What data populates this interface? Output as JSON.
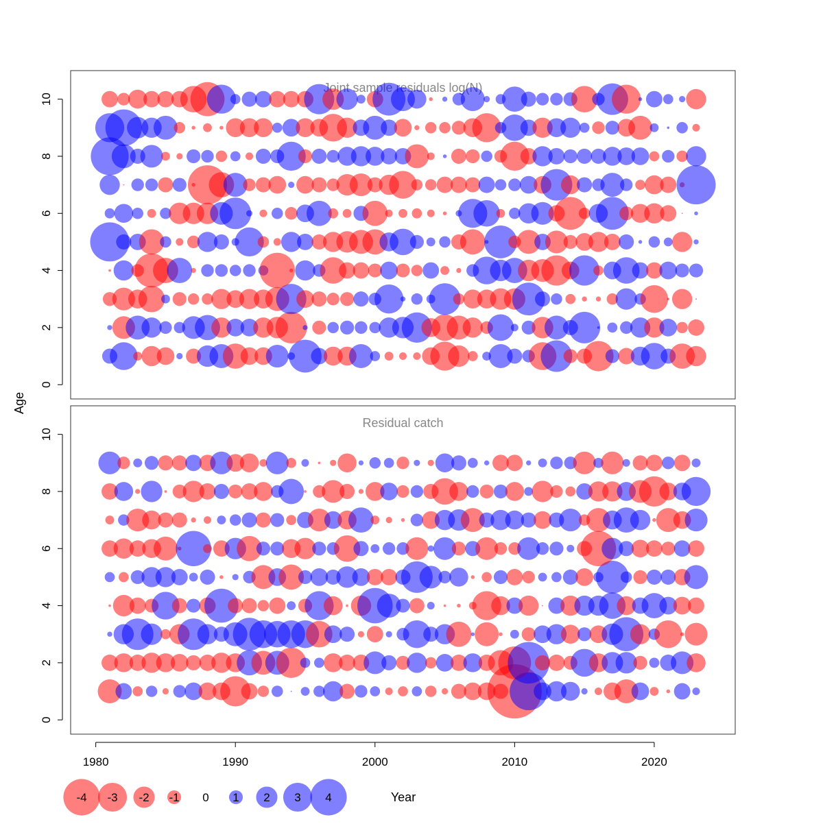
{
  "xlabel": "Year",
  "ylabel": "Age",
  "colors": {
    "negative": "#ff0000",
    "positive": "#0000ff",
    "frame": "#333333",
    "title": "#888888"
  },
  "x_ticks": [
    1980,
    1990,
    2000,
    2010,
    2020
  ],
  "legend": {
    "items": [
      {
        "label": "-4",
        "value": -4
      },
      {
        "label": "-3",
        "value": -3
      },
      {
        "label": "-2",
        "value": -2
      },
      {
        "label": "-1",
        "value": -1
      },
      {
        "label": "0",
        "value": 0
      },
      {
        "label": "1",
        "value": 1
      },
      {
        "label": "2",
        "value": 2
      },
      {
        "label": "3",
        "value": 3
      },
      {
        "label": "4",
        "value": 4
      }
    ]
  },
  "chart_data": [
    {
      "type": "scatter",
      "subtype": "bubble",
      "title": "Joint sample residuals log(N)",
      "xlabel": "",
      "ylabel": "Age",
      "xlim": [
        1978.2,
        2025.8
      ],
      "ylim": [
        -0.5,
        11.0
      ],
      "y_ticks": [
        0,
        2,
        4,
        6,
        8,
        10
      ],
      "years": [
        1981,
        1982,
        1983,
        1984,
        1985,
        1986,
        1987,
        1988,
        1989,
        1990,
        1991,
        1992,
        1993,
        1994,
        1995,
        1996,
        1997,
        1998,
        1999,
        2000,
        2001,
        2002,
        2003,
        2004,
        2005,
        2006,
        2007,
        2008,
        2009,
        2010,
        2011,
        2012,
        2013,
        2014,
        2015,
        2016,
        2017,
        2018,
        2019,
        2020,
        2021,
        2022,
        2023
      ],
      "ages": [
        1,
        2,
        3,
        4,
        5,
        6,
        7,
        8,
        9,
        10
      ],
      "residuals": {
        "10": [
          -1.3,
          -1.0,
          -1.5,
          -1.3,
          -1.3,
          -1.3,
          -2.1,
          -2.7,
          2.3,
          0.8,
          1.2,
          1.3,
          -1.3,
          -1.3,
          -1.3,
          2.4,
          -1.7,
          1.7,
          0.7,
          -1.3,
          2.6,
          1.9,
          1.5,
          -0.3,
          0.4,
          1.0,
          1.9,
          0.5,
          0.8,
          2.0,
          1.2,
          1.0,
          1.0,
          1.1,
          -2.1,
          1.0,
          2.5,
          -2.3,
          0.3,
          1.3,
          0.8,
          0.5,
          -1.6
        ],
        "9": [
          2.3,
          2.9,
          1.7,
          1.6,
          1.9,
          -0.9,
          -0.3,
          -0.7,
          -0.3,
          -1.5,
          -1.5,
          -1.5,
          0.8,
          1.4,
          -1.5,
          -1.4,
          -2.2,
          -1.6,
          1.3,
          1.9,
          1.3,
          -1.4,
          -0.4,
          -0.9,
          -0.9,
          -1.1,
          -1.5,
          -2.3,
          0.9,
          2.1,
          1.3,
          -1.6,
          1.5,
          1.6,
          0.8,
          -1.0,
          1.1,
          -1.4,
          -1.9,
          0.7,
          0.2,
          0.9,
          -0.6
        ],
        "8": [
          3.0,
          1.9,
          1.2,
          1.8,
          -0.7,
          -0.5,
          1.1,
          1.0,
          -0.9,
          0.8,
          -0.6,
          1.2,
          1.1,
          2.3,
          -1.1,
          1.2,
          1.0,
          1.5,
          1.6,
          1.5,
          1.3,
          1.3,
          -1.9,
          -0.6,
          0.3,
          -1.2,
          -1.1,
          0.9,
          -1.0,
          -2.3,
          -1.3,
          1.6,
          1.3,
          1.1,
          1.2,
          1.2,
          1.5,
          1.4,
          1.4,
          -0.8,
          1.0,
          -0.9,
          1.6
        ],
        "7": [
          1.6,
          -0.1,
          1.0,
          1.0,
          -1.2,
          1.1,
          -0.3,
          -3.1,
          -2.0,
          1.9,
          -1.0,
          -1.2,
          -1.4,
          0.5,
          -1.4,
          -1.2,
          -1.0,
          -1.7,
          -1.8,
          -1.2,
          -1.6,
          -2.2,
          -0.9,
          -0.9,
          -1.3,
          -1.3,
          -1.2,
          1.3,
          0.9,
          1.0,
          1.4,
          -1.4,
          2.5,
          -1.5,
          1.2,
          1.0,
          1.9,
          1.0,
          -0.8,
          -1.5,
          -1.3,
          -0.4,
          3.1
        ],
        "6": [
          0.8,
          1.5,
          0.9,
          -0.7,
          0.9,
          -1.7,
          -1.7,
          -1.7,
          1.8,
          2.5,
          0.5,
          -0.6,
          0.9,
          -1.0,
          1.4,
          2.0,
          -0.8,
          -0.7,
          1.2,
          -2.0,
          -0.6,
          -0.7,
          -0.8,
          -0.6,
          -0.3,
          0.5,
          2.3,
          2.1,
          -0.7,
          0.9,
          1.6,
          1.8,
          -1.3,
          -2.6,
          -0.9,
          1.5,
          2.6,
          -1.1,
          -1.5,
          -1.6,
          -1.3,
          -0.1,
          0.3
        ],
        "5": [
          3.1,
          1.2,
          1.3,
          -2.0,
          0.9,
          -0.6,
          -1.0,
          1.6,
          1.2,
          0.6,
          2.3,
          -0.9,
          -0.6,
          1.6,
          1.3,
          -1.2,
          -1.6,
          -1.7,
          -1.9,
          -2.0,
          1.5,
          2.1,
          1.1,
          0.7,
          0.9,
          -1.2,
          -2.0,
          0.3,
          2.6,
          -1.0,
          -1.9,
          1.3,
          -1.8,
          -1.1,
          -1.4,
          -1.6,
          -1.3,
          1.2,
          0.3,
          0.9,
          0.7,
          -1.6,
          0.4
        ],
        "4": [
          -0.2,
          1.6,
          -1.0,
          -2.7,
          -2.0,
          2.0,
          -0.4,
          1.0,
          1.0,
          0.9,
          1.0,
          0.8,
          -2.8,
          -0.3,
          1.6,
          1.0,
          -2.1,
          -1.3,
          -1.3,
          -1.1,
          1.4,
          -1.1,
          -0.9,
          1.3,
          -0.7,
          -0.4,
          1.0,
          2.2,
          1.7,
          2.0,
          -1.7,
          -1.8,
          -2.4,
          -1.4,
          2.4,
          -0.8,
          1.4,
          2.1,
          1.3,
          -1.3,
          1.4,
          1.1,
          1.1
        ],
        "3": [
          -1.1,
          -1.8,
          -1.5,
          -2.1,
          0.7,
          -1.1,
          -0.9,
          -0.9,
          -1.6,
          -1.4,
          -1.6,
          -1.5,
          -1.9,
          2.4,
          -1.4,
          -1.2,
          -1.0,
          -1.1,
          1.2,
          1.0,
          2.3,
          0.4,
          0.9,
          0.7,
          2.5,
          -0.9,
          -1.5,
          -1.5,
          -1.7,
          -1.7,
          2.6,
          1.2,
          0.9,
          -0.8,
          -0.4,
          -0.4,
          -0.9,
          1.7,
          0.9,
          -2.2,
          -0.2,
          -1.6,
          0.1
        ],
        "2": [
          0.4,
          -1.8,
          1.9,
          1.6,
          1.0,
          0.9,
          1.8,
          2.0,
          -1.6,
          1.4,
          1.4,
          -1.6,
          -1.7,
          -2.5,
          0.4,
          -1.1,
          0.9,
          1.1,
          1.0,
          0.9,
          1.6,
          1.7,
          2.4,
          -1.5,
          -2.1,
          -1.9,
          -1.6,
          -1.0,
          2.1,
          0.6,
          1.1,
          -1.7,
          1.9,
          1.2,
          2.5,
          0.2,
          0.8,
          1.0,
          1.6,
          -1.6,
          1.4,
          -0.9,
          -1.3
        ],
        "1": [
          1.2,
          2.2,
          -0.7,
          -1.6,
          -1.4,
          0.5,
          -1.2,
          1.7,
          1.9,
          -2.0,
          -1.4,
          -1.4,
          1.8,
          0.6,
          2.6,
          1.3,
          -1.5,
          -1.5,
          1.9,
          0.8,
          -0.7,
          -0.6,
          -0.6,
          -1.4,
          -2.3,
          -1.7,
          -0.8,
          0.7,
          1.9,
          1.2,
          1.0,
          -2.2,
          2.5,
          -1.1,
          -1.2,
          -2.4,
          1.1,
          -1.3,
          1.5,
          2.1,
          1.2,
          -2.0,
          -1.6
        ]
      }
    },
    {
      "type": "scatter",
      "subtype": "bubble",
      "title": "Residual catch",
      "xlabel": "Year",
      "ylabel": "Age",
      "xlim": [
        1978.2,
        2025.8
      ],
      "ylim": [
        -0.5,
        11.0
      ],
      "y_ticks": [
        0,
        2,
        4,
        6,
        8,
        10
      ],
      "years": [
        1981,
        1982,
        1983,
        1984,
        1985,
        1986,
        1987,
        1988,
        1989,
        1990,
        1991,
        1992,
        1993,
        1994,
        1995,
        1996,
        1997,
        1998,
        1999,
        2000,
        2001,
        2002,
        2003,
        2004,
        2005,
        2006,
        2007,
        2008,
        2009,
        2010,
        2011,
        2012,
        2013,
        2014,
        2015,
        2016,
        2017,
        2018,
        2019,
        2020,
        2021,
        2022,
        2023
      ],
      "ages": [
        1,
        2,
        3,
        4,
        5,
        6,
        7,
        8,
        9
      ],
      "residuals": {
        "9": [
          1.8,
          -1.0,
          0.7,
          1.1,
          -1.2,
          -1.2,
          1.3,
          -1.3,
          1.8,
          -1.4,
          -1.5,
          -0.6,
          1.8,
          -0.8,
          0.6,
          -0.2,
          -0.5,
          -1.5,
          0.4,
          0.9,
          0.8,
          -1.0,
          0.5,
          -0.5,
          1.5,
          1.2,
          0.8,
          0.4,
          -1.3,
          -1.3,
          0.4,
          0.7,
          1.0,
          1.0,
          -1.8,
          0.8,
          -1.8,
          0.6,
          -1.2,
          -1.3,
          1.0,
          -1.3,
          0.7
        ],
        "8": [
          -1.3,
          1.5,
          -0.4,
          1.7,
          -0.2,
          -1.1,
          -1.7,
          -1.3,
          1.2,
          -1.1,
          -1.3,
          -1.5,
          1.0,
          2.0,
          -0.2,
          -1.0,
          -1.8,
          -1.2,
          -0.4,
          -1.5,
          1.4,
          -1.0,
          1.0,
          -1.2,
          -2.1,
          -1.5,
          1.0,
          -1.1,
          1.1,
          -1.5,
          0.7,
          -1.7,
          -1.0,
          -0.8,
          1.3,
          -1.6,
          -1.6,
          1.5,
          -1.8,
          -2.4,
          -1.4,
          1.4,
          2.3
        ],
        "7": [
          -0.7,
          0.9,
          -1.8,
          -1.5,
          -1.2,
          -1.2,
          -0.4,
          -0.6,
          0.7,
          0.9,
          1.2,
          -1.2,
          1.1,
          -0.8,
          1.3,
          -1.8,
          1.4,
          -1.5,
          2.0,
          -0.7,
          -0.5,
          -0.3,
          1.0,
          -1.4,
          1.6,
          1.7,
          -1.9,
          1.2,
          1.6,
          1.5,
          1.2,
          -1.4,
          1.2,
          1.8,
          -0.9,
          -1.9,
          1.5,
          2.0,
          1.6,
          -0.3,
          -1.9,
          -1.4,
          1.8
        ],
        "6": [
          -1.3,
          -1.6,
          -1.3,
          -1.5,
          -1.9,
          -0.3,
          2.8,
          -0.7,
          -1.3,
          1.7,
          -2.0,
          1.1,
          1.1,
          -1.5,
          -1.7,
          1.1,
          1.0,
          -2.1,
          1.2,
          0.7,
          1.0,
          1.0,
          -1.8,
          0.5,
          1.8,
          -1.1,
          1.2,
          -1.8,
          -1.0,
          -1.0,
          1.8,
          1.0,
          1.1,
          0.6,
          -1.2,
          -2.8,
          1.7,
          1.2,
          -1.4,
          -1.3,
          -1.1,
          1.3,
          -1.3
        ],
        "5": [
          0.8,
          -0.8,
          1.1,
          1.6,
          1.6,
          1.3,
          0.7,
          1.2,
          -0.3,
          0.5,
          1.0,
          -1.9,
          1.4,
          -2.0,
          1.1,
          1.4,
          1.2,
          1.7,
          1.4,
          -1.3,
          -1.3,
          1.2,
          2.5,
          1.8,
          1.0,
          1.5,
          -0.3,
          -0.8,
          1.1,
          -1.3,
          -1.0,
          0.7,
          0.8,
          1.2,
          -1.4,
          0.8,
          2.6,
          0.9,
          -1.1,
          1.2,
          1.2,
          -1.3,
          1.9
        ],
        "4": [
          -0.2,
          -1.7,
          -1.3,
          -1.1,
          2.2,
          -1.2,
          1.1,
          -1.3,
          2.7,
          -1.2,
          -1.2,
          -0.9,
          -1.3,
          0.7,
          -1.1,
          2.3,
          -1.5,
          -0.2,
          -1.6,
          2.8,
          1.9,
          1.1,
          -1.2,
          0.6,
          -0.2,
          -0.3,
          -0.6,
          -2.3,
          -1.5,
          1.3,
          -1.6,
          -0.1,
          1.3,
          -1.6,
          1.6,
          1.6,
          2.1,
          -1.5,
          1.3,
          2.0,
          1.4,
          -1.4,
          -1.3
        ],
        "3": [
          0.4,
          1.6,
          2.5,
          1.7,
          -0.8,
          -1.6,
          2.5,
          1.6,
          1.2,
          1.9,
          2.6,
          2.2,
          2.1,
          2.2,
          2.2,
          -2.1,
          1.4,
          1.2,
          -0.5,
          -1.3,
          0.5,
          1.0,
          2.2,
          1.2,
          1.6,
          -2.0,
          0.3,
          -1.9,
          -0.3,
          0.7,
          -1.1,
          1.4,
          1.6,
          -1.5,
          1.1,
          -1.4,
          1.7,
          2.7,
          -1.6,
          0.9,
          -2.2,
          -0.3,
          -1.8
        ],
        "2": [
          -1.3,
          -1.5,
          -1.3,
          -1.6,
          -1.5,
          -1.4,
          -1.2,
          -1.3,
          -1.6,
          -1.5,
          2.0,
          -1.9,
          1.9,
          -2.4,
          0.8,
          0.8,
          -1.5,
          -1.3,
          -1.3,
          1.8,
          1.2,
          -1.1,
          1.6,
          -0.9,
          1.4,
          -1.3,
          1.5,
          -1.3,
          -2.0,
          -2.6,
          3.3,
          -1.2,
          -1.3,
          -1.1,
          2.2,
          -1.5,
          1.7,
          1.7,
          -1.1,
          0.8,
          1.3,
          1.8,
          -1.5
        ],
        "1": [
          -1.9,
          1.3,
          -0.8,
          0.9,
          -0.5,
          1.0,
          1.4,
          -1.4,
          -1.4,
          -2.4,
          -1.3,
          -0.9,
          0.9,
          0.1,
          0.7,
          0.9,
          1.6,
          -1.2,
          1.0,
          0.8,
          -0.6,
          -0.8,
          0.8,
          -0.9,
          -0.5,
          -1.2,
          -1.4,
          -1.4,
          -1.2,
          -4.3,
          3.0,
          1.4,
          1.6,
          1.5,
          0.5,
          -0.6,
          -1.4,
          -1.9,
          1.4,
          -0.7,
          -0.3,
          1.3,
          0.6
        ]
      }
    }
  ]
}
